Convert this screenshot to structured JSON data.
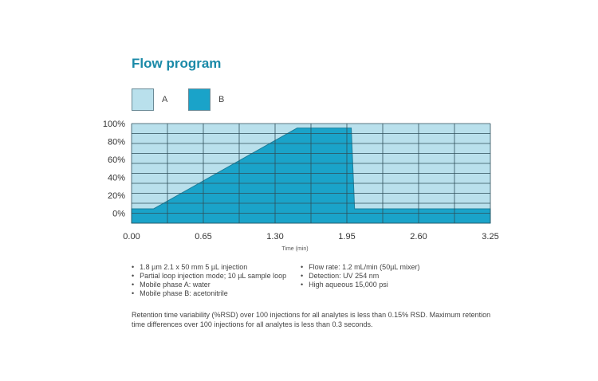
{
  "title": "Flow program",
  "legend": [
    {
      "label": "A",
      "color": "#b9e0ec"
    },
    {
      "label": "B",
      "color": "#1aa3c9"
    }
  ],
  "chart_data": {
    "type": "area",
    "title": "Flow program",
    "xlabel": "Time (min)",
    "ylabel": "",
    "xlim": [
      0,
      3.25
    ],
    "ylim": [
      -11,
      100
    ],
    "x_ticks": [
      "0.00",
      "0.65",
      "1.30",
      "1.95",
      "2.60",
      "3.25"
    ],
    "x_tick_values": [
      0,
      0.65,
      1.3,
      1.95,
      2.6,
      3.25
    ],
    "y_ticks": [
      "100%",
      "80%",
      "60%",
      "40%",
      "20%",
      "0%"
    ],
    "y_tick_values": [
      100,
      80,
      60,
      40,
      20,
      0
    ],
    "grid": true,
    "series": [
      {
        "name": "B",
        "x": [
          0,
          0.2,
          1.5,
          1.99,
          2.02,
          3.25
        ],
        "y": [
          5,
          5,
          95,
          95,
          5,
          5
        ]
      }
    ],
    "background_series": "A"
  },
  "bullets_left": [
    "1.8 µm 2.1 x 50 mm 5 µL injection",
    "Partial loop injection mode; 10 µL sample loop",
    "Mobile phase A: water",
    "Mobile phase B: acetonitrile"
  ],
  "bullets_right": [
    "Flow rate: 1.2 mL/min (50µL mixer)",
    "Detection: UV 254 nm",
    "High aqueous 15,000 psi"
  ],
  "note": "Retention time variability (%RSD) over 100 injections for all analytes is less than 0.15% RSD. Maximum retention time differences over 100 injections for all analytes is less than 0.3 seconds."
}
